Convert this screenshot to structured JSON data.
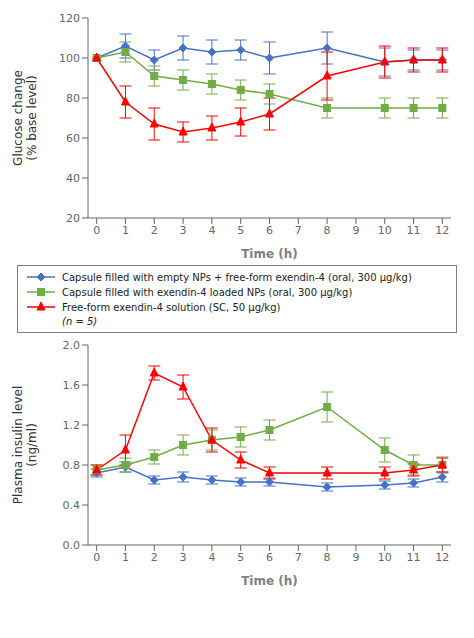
{
  "chart_data": [
    {
      "type": "line",
      "y_label": "Glucose change\n(% base level)",
      "x_label": "Time (h)",
      "x": [
        0,
        1,
        2,
        3,
        4,
        5,
        6,
        8,
        10,
        11,
        12
      ],
      "xlim": [
        -0.3,
        12.3
      ],
      "xticks": [
        0,
        1,
        2,
        3,
        4,
        5,
        6,
        7,
        8,
        9,
        10,
        11,
        12
      ],
      "ylim": [
        20,
        120
      ],
      "yticks": [
        20,
        40,
        60,
        80,
        100,
        120
      ],
      "legend": "bottom",
      "annotations": [
        "(n = 5)"
      ],
      "series": [
        {
          "name": "Capsule filled with empty NPs + free-form exendin-4 (oral, 300 μg/kg)",
          "color": "#4472C4",
          "marker": "diamond",
          "values": [
            100,
            106,
            99,
            105,
            103,
            104,
            100,
            105,
            98,
            99,
            99
          ],
          "errors": [
            0,
            6,
            5,
            6,
            6,
            5,
            8,
            8,
            7,
            5,
            5
          ]
        },
        {
          "name": "Capsule filled with exendin-4 loaded NPs (oral, 300 μg/kg)",
          "color": "#70AD47",
          "marker": "square",
          "values": [
            100,
            103,
            91,
            89,
            87,
            84,
            82,
            75,
            75,
            75,
            75
          ],
          "errors": [
            0,
            5,
            5,
            5,
            5,
            5,
            5,
            5,
            5,
            5,
            5
          ]
        },
        {
          "name": "Free-form exendin-4 solution (SC, 50 μg/kg)",
          "color": "#FF0000",
          "marker": "triangle",
          "values": [
            100,
            78,
            67,
            63,
            65,
            68,
            72,
            91,
            98,
            99,
            99
          ],
          "errors": [
            0,
            8,
            8,
            5,
            6,
            7,
            8,
            12,
            8,
            6,
            6
          ]
        }
      ]
    },
    {
      "type": "line",
      "y_label": "Plasma insulin level\n(ng/ml)",
      "x_label": "Time (h)",
      "x": [
        0,
        1,
        2,
        3,
        4,
        5,
        6,
        8,
        10,
        11,
        12
      ],
      "xlim": [
        -0.3,
        12.3
      ],
      "xticks": [
        0,
        1,
        2,
        3,
        4,
        5,
        6,
        7,
        8,
        9,
        10,
        11,
        12
      ],
      "ylim": [
        0.0,
        2.0
      ],
      "yticks": [
        {
          "value": 0,
          "label": "0.0"
        },
        0.4,
        0.8,
        1.2,
        1.6,
        {
          "value": 2,
          "label": "2.0"
        }
      ],
      "series": [
        {
          "name": "Capsule filled with empty NPs + free-form exendin-4 (oral, 300 μg/kg)",
          "color": "#4472C4",
          "marker": "diamond",
          "values": [
            0.72,
            0.78,
            0.65,
            0.68,
            0.65,
            0.63,
            0.63,
            0.58,
            0.6,
            0.62,
            0.68
          ],
          "errors": [
            0.04,
            0.05,
            0.04,
            0.05,
            0.04,
            0.04,
            0.04,
            0.04,
            0.04,
            0.04,
            0.05
          ]
        },
        {
          "name": "Capsule filled with exendin-4 loaded NPs (oral, 300 μg/kg)",
          "color": "#70AD47",
          "marker": "square",
          "values": [
            0.75,
            0.8,
            0.88,
            1.0,
            1.05,
            1.08,
            1.15,
            1.38,
            0.95,
            0.8,
            0.8
          ],
          "errors": [
            0.05,
            0.07,
            0.07,
            0.1,
            0.1,
            0.1,
            0.1,
            0.15,
            0.12,
            0.1,
            0.08
          ]
        },
        {
          "name": "Free-form exendin-4 solution (SC, 50 μg/kg)",
          "color": "#FF0000",
          "marker": "triangle",
          "values": [
            0.75,
            0.95,
            1.72,
            1.58,
            1.05,
            0.85,
            0.72,
            0.72,
            0.72,
            0.75,
            0.8
          ],
          "errors": [
            0.05,
            0.15,
            0.07,
            0.12,
            0.12,
            0.08,
            0.06,
            0.06,
            0.06,
            0.06,
            0.07
          ]
        }
      ]
    }
  ]
}
